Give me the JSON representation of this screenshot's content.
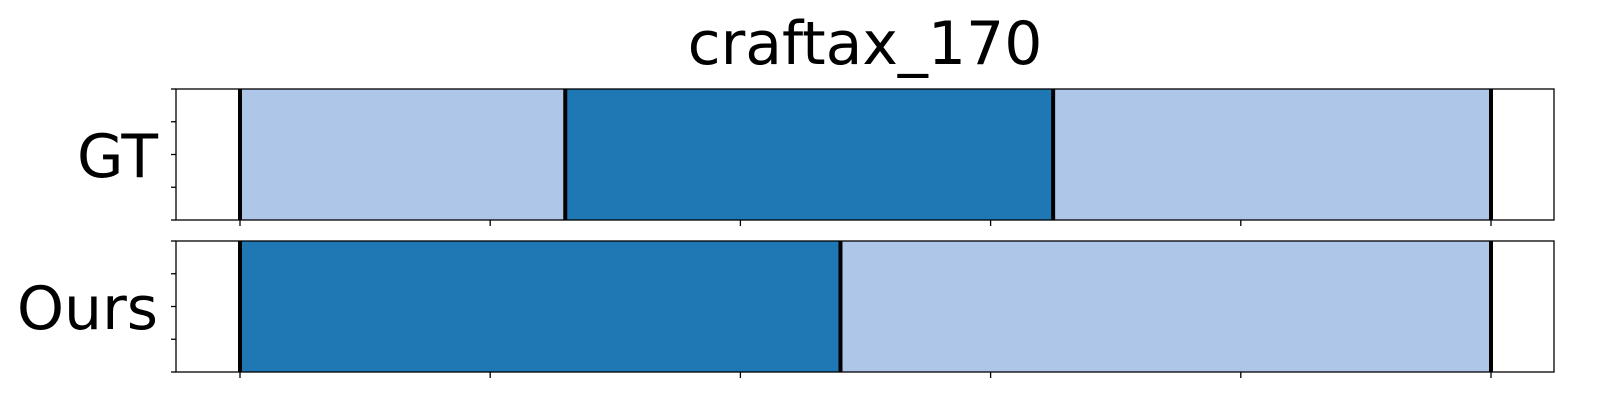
{
  "chart_data": {
    "type": "bar",
    "orientation": "horizontal-segments",
    "title": "craftax_170",
    "xlim": [
      0,
      100
    ],
    "xticks": [
      0,
      20,
      40,
      60,
      80,
      100
    ],
    "rows": [
      {
        "label": "GT",
        "segments": [
          {
            "start": 0,
            "end": 26,
            "color": "#aec7e8"
          },
          {
            "start": 26,
            "end": 65,
            "color": "#1f77b4"
          },
          {
            "start": 65,
            "end": 100,
            "color": "#aec7e8"
          }
        ],
        "boundaries": [
          0,
          26,
          65,
          100
        ]
      },
      {
        "label": "Ours",
        "segments": [
          {
            "start": 0,
            "end": 48,
            "color": "#1f77b4"
          },
          {
            "start": 48,
            "end": 100,
            "color": "#aec7e8"
          }
        ],
        "boundaries": [
          0,
          48,
          100
        ]
      }
    ],
    "grid": false,
    "legend": "none"
  }
}
